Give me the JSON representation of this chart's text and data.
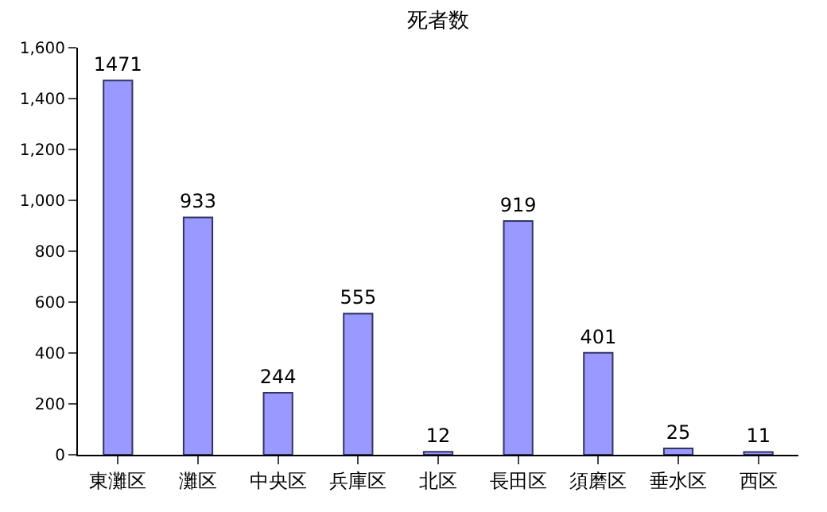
{
  "chart_data": {
    "type": "bar",
    "title": "死者数",
    "categories": [
      "東灘区",
      "灘区",
      "中央区",
      "兵庫区",
      "北区",
      "長田区",
      "須磨区",
      "垂水区",
      "西区"
    ],
    "values": [
      1471,
      933,
      244,
      555,
      12,
      919,
      401,
      25,
      11
    ],
    "color": "#9999ff",
    "ylim": [
      0,
      1600
    ],
    "yticks": [
      0,
      200,
      400,
      600,
      800,
      {
        "value": 1000,
        "label": "1,000"
      },
      {
        "value": 1200,
        "label": "1,200"
      },
      {
        "value": 1400,
        "label": "1,400"
      },
      {
        "value": 1600,
        "label": "1,600"
      }
    ],
    "data_labels": true
  }
}
